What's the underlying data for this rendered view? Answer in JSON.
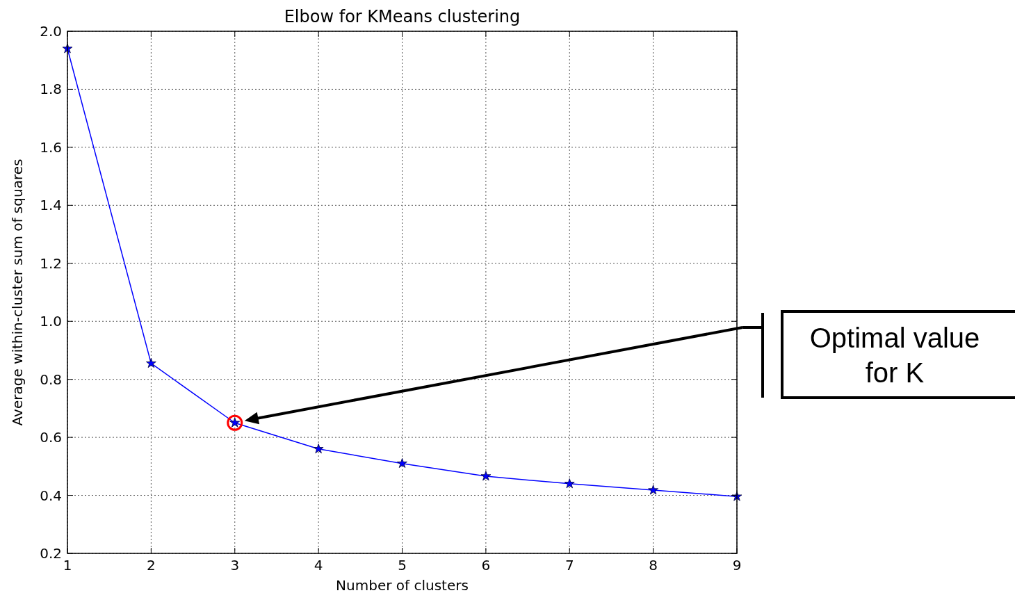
{
  "chart_data": {
    "type": "line",
    "title": "Elbow for KMeans clustering",
    "xlabel": "Number of clusters",
    "ylabel": "Average within-cluster sum of squares",
    "x": [
      1,
      2,
      3,
      4,
      5,
      6,
      7,
      8,
      9
    ],
    "series": [
      {
        "color": "#0000ff",
        "values": [
          1.94,
          0.855,
          0.65,
          0.56,
          0.51,
          0.466,
          0.44,
          0.418,
          0.396
        ]
      }
    ],
    "xlim": [
      1,
      9
    ],
    "xticks": [
      1,
      2,
      3,
      4,
      5,
      6,
      7,
      8,
      9
    ],
    "ylim": [
      0.2,
      2.0
    ],
    "yticks": [
      0.2,
      0.4,
      0.6,
      0.8,
      {
        "value": 1.0,
        "label": "1.0"
      },
      1.2,
      1.4,
      1.6,
      1.8,
      {
        "value": 2.0,
        "label": "2.0"
      }
    ],
    "grid": true,
    "marker": "star",
    "line_style": "solid",
    "annotations": [
      "Optimal value for K"
    ]
  }
}
